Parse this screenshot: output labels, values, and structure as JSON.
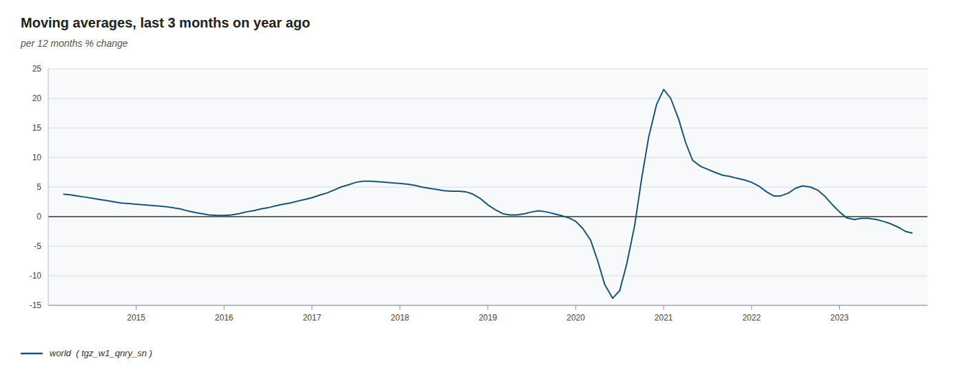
{
  "chart_data": {
    "type": "line",
    "title": "Moving averages, last 3 months on year ago",
    "subtitle": "per 12 months % change",
    "x": [
      2014.17,
      2014.25,
      2014.33,
      2014.42,
      2014.5,
      2014.58,
      2014.67,
      2014.75,
      2014.83,
      2014.92,
      2015.0,
      2015.08,
      2015.17,
      2015.25,
      2015.33,
      2015.42,
      2015.5,
      2015.58,
      2015.67,
      2015.75,
      2015.83,
      2015.92,
      2016.0,
      2016.08,
      2016.17,
      2016.25,
      2016.33,
      2016.42,
      2016.5,
      2016.58,
      2016.67,
      2016.75,
      2016.83,
      2016.92,
      2017.0,
      2017.08,
      2017.17,
      2017.25,
      2017.33,
      2017.42,
      2017.5,
      2017.58,
      2017.67,
      2017.75,
      2017.83,
      2017.92,
      2018.0,
      2018.08,
      2018.17,
      2018.25,
      2018.33,
      2018.42,
      2018.5,
      2018.58,
      2018.67,
      2018.75,
      2018.83,
      2018.92,
      2019.0,
      2019.08,
      2019.17,
      2019.25,
      2019.33,
      2019.42,
      2019.5,
      2019.58,
      2019.67,
      2019.75,
      2019.83,
      2019.92,
      2020.0,
      2020.08,
      2020.17,
      2020.25,
      2020.33,
      2020.42,
      2020.5,
      2020.58,
      2020.67,
      2020.75,
      2020.83,
      2020.92,
      2021.0,
      2021.08,
      2021.17,
      2021.25,
      2021.33,
      2021.42,
      2021.5,
      2021.58,
      2021.67,
      2021.75,
      2021.83,
      2021.92,
      2022.0,
      2022.08,
      2022.17,
      2022.25,
      2022.33,
      2022.42,
      2022.5,
      2022.58,
      2022.67,
      2022.75,
      2022.83,
      2022.92,
      2023.0,
      2023.08,
      2023.17,
      2023.25,
      2023.33,
      2023.42,
      2023.5,
      2023.58,
      2023.67,
      2023.75,
      2023.83
    ],
    "series": [
      {
        "name": "world  ( tgz_w1_qnry_sn )",
        "color": "#1a5276",
        "values": [
          3.8,
          3.7,
          3.5,
          3.3,
          3.1,
          2.9,
          2.7,
          2.5,
          2.3,
          2.2,
          2.1,
          2.0,
          1.9,
          1.8,
          1.7,
          1.5,
          1.3,
          1.0,
          0.7,
          0.5,
          0.3,
          0.2,
          0.2,
          0.3,
          0.5,
          0.8,
          1.0,
          1.3,
          1.5,
          1.8,
          2.1,
          2.3,
          2.6,
          2.9,
          3.2,
          3.6,
          4.0,
          4.5,
          5.0,
          5.4,
          5.8,
          6.0,
          6.0,
          5.9,
          5.8,
          5.7,
          5.6,
          5.5,
          5.3,
          5.0,
          4.8,
          4.6,
          4.4,
          4.3,
          4.3,
          4.2,
          3.8,
          3.0,
          2.0,
          1.2,
          0.5,
          0.3,
          0.3,
          0.5,
          0.8,
          1.0,
          0.8,
          0.5,
          0.2,
          -0.2,
          -0.8,
          -2.0,
          -4.0,
          -7.5,
          -11.5,
          -13.8,
          -12.5,
          -8.0,
          -1.5,
          6.5,
          13.5,
          19.0,
          21.5,
          20.0,
          16.5,
          12.5,
          9.5,
          8.5,
          8.0,
          7.5,
          7.0,
          6.8,
          6.5,
          6.2,
          5.8,
          5.2,
          4.2,
          3.5,
          3.5,
          4.0,
          4.8,
          5.2,
          5.0,
          4.5,
          3.5,
          2.0,
          0.8,
          -0.2,
          -0.5,
          -0.3,
          -0.3,
          -0.5,
          -0.8,
          -1.2,
          -1.8,
          -2.5,
          -2.8
        ]
      }
    ],
    "xlim": [
      2014.0,
      2024.0
    ],
    "xticks": [
      2015,
      2016,
      2017,
      2018,
      2019,
      2020,
      2021,
      2022,
      2023
    ],
    "ylim": [
      -15,
      25
    ],
    "yticks": [
      -15,
      -10,
      -5,
      0,
      5,
      10,
      15,
      20,
      25
    ],
    "grid": true,
    "legend": "bottom"
  }
}
